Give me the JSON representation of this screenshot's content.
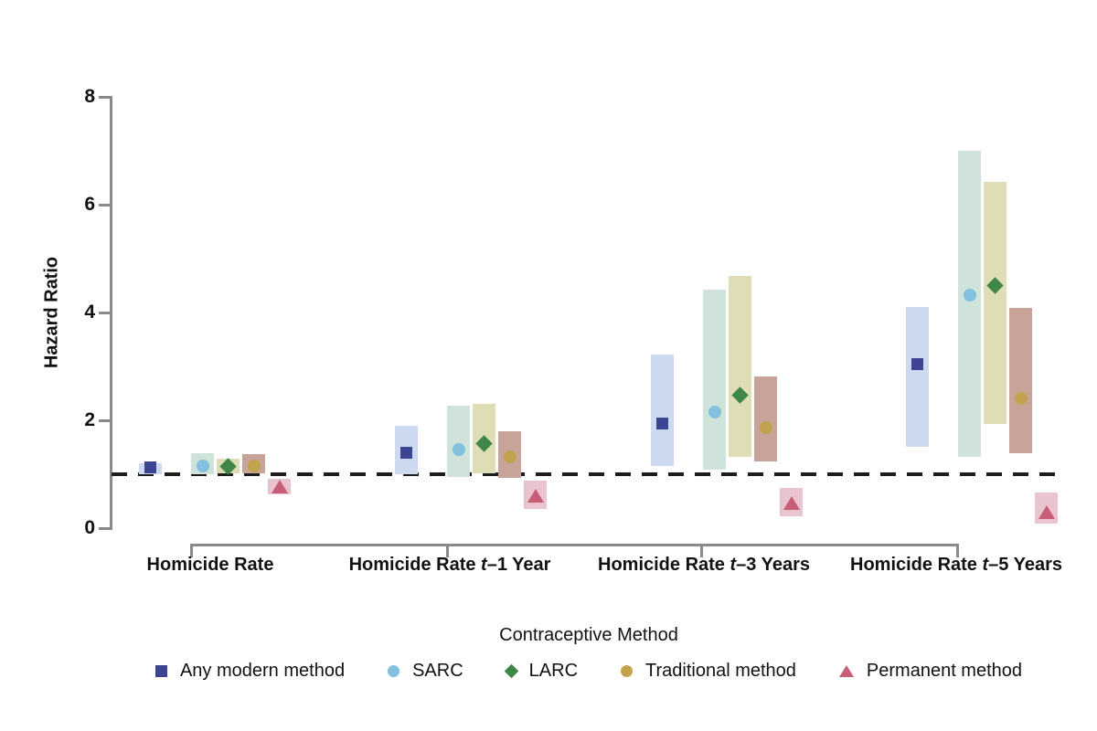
{
  "chart_data": {
    "type": "scatter",
    "subtype": "point-estimates-with-confidence-interval-bands",
    "title": "",
    "xlabel": "",
    "ylabel": "Hazard Ratio",
    "ylim": [
      0,
      8
    ],
    "yticks": [
      0,
      2,
      4,
      6,
      8
    ],
    "grid": false,
    "reference_line_y": 1,
    "legend_position": "bottom",
    "legend_title": "Contraceptive Method",
    "axis_color": "#8a8a8a",
    "reference_line_color": "#1c1c1c",
    "categories": [
      {
        "full": "Homicide Rate",
        "prefix": "Homicide Rate",
        "italic_t": false,
        "suffix": ""
      },
      {
        "full": "Homicide Rate t–1 Year",
        "prefix": "Homicide Rate ",
        "italic_t": true,
        "suffix": "–1 Year"
      },
      {
        "full": "Homicide Rate t–3 Years",
        "prefix": "Homicide Rate ",
        "italic_t": true,
        "suffix": "–3 Years"
      },
      {
        "full": "Homicide Rate t–5 Years",
        "prefix": "Homicide Rate ",
        "italic_t": true,
        "suffix": "–5 Years"
      }
    ],
    "series": [
      {
        "name": "Any modern method",
        "marker": "square",
        "marker_color": "#3e4494",
        "band_color": "#ccd9ee",
        "points": [
          {
            "hr": 1.12,
            "lo": 1.0,
            "hi": 1.21
          },
          {
            "hr": 1.4,
            "lo": 1.0,
            "hi": 1.89
          },
          {
            "hr": 1.94,
            "lo": 1.15,
            "hi": 3.22
          },
          {
            "hr": 3.05,
            "lo": 1.5,
            "hi": 4.1
          }
        ]
      },
      {
        "name": "SARC",
        "marker": "circle",
        "marker_color": "#82c0de",
        "band_color": "#cfe3db",
        "points": [
          {
            "hr": 1.16,
            "lo": 1.0,
            "hi": 1.39
          },
          {
            "hr": 1.46,
            "lo": 0.95,
            "hi": 2.27
          },
          {
            "hr": 2.15,
            "lo": 1.08,
            "hi": 4.43
          },
          {
            "hr": 4.33,
            "lo": 1.33,
            "hi": 7.0
          }
        ]
      },
      {
        "name": "LARC",
        "marker": "diamond",
        "marker_color": "#3f8749",
        "band_color": "#dfddb5",
        "points": [
          {
            "hr": 1.14,
            "lo": 1.01,
            "hi": 1.29
          },
          {
            "hr": 1.56,
            "lo": 1.01,
            "hi": 2.31
          },
          {
            "hr": 2.47,
            "lo": 1.32,
            "hi": 4.68
          },
          {
            "hr": 4.5,
            "lo": 1.94,
            "hi": 6.42
          }
        ]
      },
      {
        "name": "Traditional method",
        "marker": "circle",
        "marker_color": "#c2a24c",
        "band_color": "#c7a39a",
        "points": [
          {
            "hr": 1.15,
            "lo": 1.01,
            "hi": 1.37
          },
          {
            "hr": 1.32,
            "lo": 0.94,
            "hi": 1.8
          },
          {
            "hr": 1.86,
            "lo": 1.23,
            "hi": 2.81
          },
          {
            "hr": 2.4,
            "lo": 1.39,
            "hi": 4.09
          }
        ]
      },
      {
        "name": "Permanent method",
        "marker": "triangle",
        "marker_color": "#c75d76",
        "band_color": "#e9c3ce",
        "points": [
          {
            "hr": 0.77,
            "lo": 0.62,
            "hi": 0.92
          },
          {
            "hr": 0.6,
            "lo": 0.36,
            "hi": 0.88
          },
          {
            "hr": 0.46,
            "lo": 0.22,
            "hi": 0.75
          },
          {
            "hr": 0.29,
            "lo": 0.09,
            "hi": 0.66
          }
        ]
      }
    ]
  }
}
